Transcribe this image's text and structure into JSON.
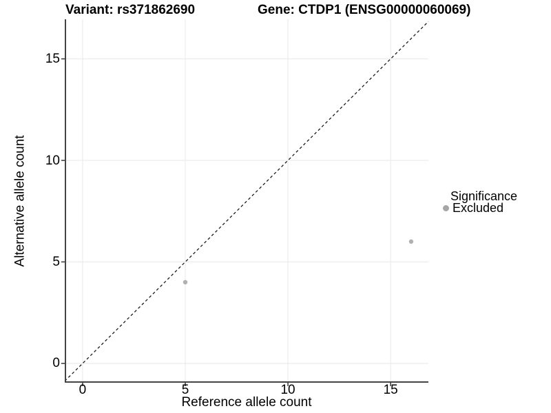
{
  "chart_data": {
    "type": "scatter",
    "title_left": "Variant: rs371862690",
    "title_right": "Gene: CTDP1 (ENSG00000060069)",
    "xlabel": "Reference allele count",
    "ylabel": "Alternative allele count",
    "xlim": [
      -0.87,
      16.84
    ],
    "ylim": [
      -0.95,
      16.95
    ],
    "xticks": [
      0,
      5,
      10,
      15
    ],
    "yticks": [
      0,
      5,
      10,
      15
    ],
    "grid": "major",
    "legend_position": "right",
    "series": [
      {
        "name": "Excluded",
        "color": "#b0b0b0",
        "point_radius": 3.2,
        "points": [
          {
            "x": 5,
            "y": 4
          },
          {
            "x": 16,
            "y": 6
          }
        ]
      }
    ],
    "reference_line": {
      "type": "identity",
      "equation": "y = x",
      "style": "dashed",
      "color": "#1a1a1a"
    },
    "legend": {
      "title": "Significance",
      "entries": [
        {
          "label": "Excluded",
          "color": "#a6a6a6"
        }
      ]
    },
    "colors": {
      "grid": "#ececec",
      "axis_line": "#434343",
      "tick_mark": "#333333",
      "text": "#000000",
      "background": "#ffffff"
    }
  }
}
